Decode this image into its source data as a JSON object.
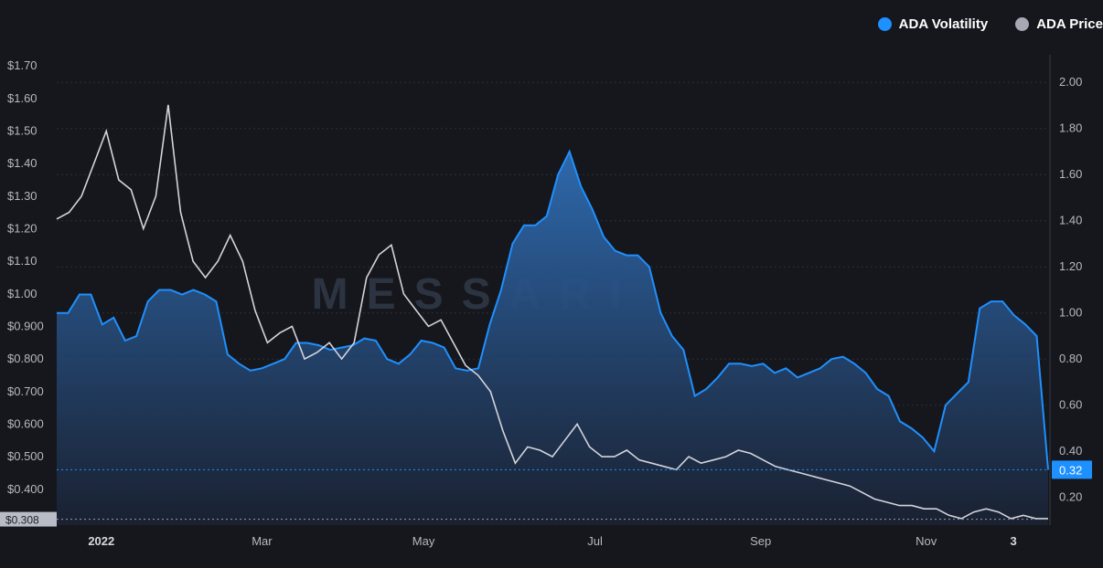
{
  "chart_data": {
    "type": "area",
    "watermark": "MESSARI",
    "legend_position": "top-right",
    "grid": true,
    "series": [
      {
        "name": "ADA Volatility",
        "axis": "right",
        "style": "area",
        "color": "#1e90ff",
        "values": [
          1.0,
          1.0,
          1.08,
          1.08,
          0.95,
          0.98,
          0.88,
          0.9,
          1.05,
          1.1,
          1.1,
          1.08,
          1.1,
          1.08,
          1.05,
          0.82,
          0.78,
          0.75,
          0.76,
          0.78,
          0.8,
          0.87,
          0.87,
          0.86,
          0.84,
          0.85,
          0.86,
          0.89,
          0.88,
          0.8,
          0.78,
          0.82,
          0.88,
          0.87,
          0.85,
          0.76,
          0.75,
          0.76,
          0.95,
          1.1,
          1.3,
          1.38,
          1.38,
          1.42,
          1.6,
          1.7,
          1.55,
          1.45,
          1.33,
          1.27,
          1.25,
          1.25,
          1.2,
          1.0,
          0.9,
          0.84,
          0.64,
          0.67,
          0.72,
          0.78,
          0.78,
          0.77,
          0.78,
          0.74,
          0.76,
          0.72,
          0.74,
          0.76,
          0.8,
          0.81,
          0.78,
          0.74,
          0.67,
          0.64,
          0.53,
          0.5,
          0.46,
          0.4,
          0.6,
          0.65,
          0.7,
          1.02,
          1.05,
          1.05,
          0.99,
          0.95,
          0.9,
          0.32
        ]
      },
      {
        "name": "ADA Price",
        "axis": "left",
        "style": "line",
        "color": "#d3d4dc",
        "values": [
          1.23,
          1.25,
          1.3,
          1.4,
          1.5,
          1.35,
          1.32,
          1.2,
          1.3,
          1.58,
          1.25,
          1.1,
          1.05,
          1.1,
          1.18,
          1.1,
          0.95,
          0.85,
          0.88,
          0.9,
          0.8,
          0.82,
          0.85,
          0.8,
          0.85,
          1.05,
          1.12,
          1.15,
          1.0,
          0.95,
          0.9,
          0.92,
          0.85,
          0.78,
          0.75,
          0.7,
          0.58,
          0.48,
          0.53,
          0.52,
          0.5,
          0.55,
          0.6,
          0.53,
          0.5,
          0.5,
          0.52,
          0.49,
          0.48,
          0.47,
          0.46,
          0.5,
          0.48,
          0.49,
          0.5,
          0.52,
          0.51,
          0.49,
          0.47,
          0.46,
          0.45,
          0.44,
          0.43,
          0.42,
          0.41,
          0.39,
          0.37,
          0.36,
          0.35,
          0.35,
          0.34,
          0.34,
          0.32,
          0.31,
          0.33,
          0.34,
          0.33,
          0.31,
          0.32,
          0.31,
          0.31
        ]
      }
    ],
    "left_axis": {
      "ylim": [
        0.29,
        1.72
      ],
      "ticks": [
        {
          "v": 1.7,
          "label": "$1.70"
        },
        {
          "v": 1.6,
          "label": "$1.60"
        },
        {
          "v": 1.5,
          "label": "$1.50"
        },
        {
          "v": 1.4,
          "label": "$1.40"
        },
        {
          "v": 1.3,
          "label": "$1.30"
        },
        {
          "v": 1.2,
          "label": "$1.20"
        },
        {
          "v": 1.1,
          "label": "$1.10"
        },
        {
          "v": 1.0,
          "label": "$1.00"
        },
        {
          "v": 0.9,
          "label": "$0.900"
        },
        {
          "v": 0.8,
          "label": "$0.800"
        },
        {
          "v": 0.7,
          "label": "$0.700"
        },
        {
          "v": 0.6,
          "label": "$0.600"
        },
        {
          "v": 0.5,
          "label": "$0.500"
        },
        {
          "v": 0.4,
          "label": "$0.400"
        }
      ],
      "current_label": "$0.308",
      "current_value": 0.308
    },
    "right_axis": {
      "ylim": [
        0.08,
        2.1
      ],
      "ticks": [
        {
          "v": 2.0,
          "label": "2.00"
        },
        {
          "v": 1.8,
          "label": "1.80"
        },
        {
          "v": 1.6,
          "label": "1.60"
        },
        {
          "v": 1.4,
          "label": "1.40"
        },
        {
          "v": 1.2,
          "label": "1.20"
        },
        {
          "v": 1.0,
          "label": "1.00"
        },
        {
          "v": 0.8,
          "label": "0.80"
        },
        {
          "v": 0.6,
          "label": "0.60"
        },
        {
          "v": 0.4,
          "label": "0.40"
        },
        {
          "v": 0.2,
          "label": "0.20"
        }
      ],
      "current_label": "0.32",
      "current_value": 0.32
    },
    "x_ticks": [
      {
        "label": "2022",
        "pos": 0.045,
        "bold": true
      },
      {
        "label": "Mar",
        "pos": 0.207,
        "bold": false
      },
      {
        "label": "May",
        "pos": 0.37,
        "bold": false
      },
      {
        "label": "Jul",
        "pos": 0.543,
        "bold": false
      },
      {
        "label": "Sep",
        "pos": 0.71,
        "bold": false
      },
      {
        "label": "Nov",
        "pos": 0.877,
        "bold": false
      },
      {
        "label": "3",
        "pos": 0.965,
        "bold": true
      }
    ]
  }
}
